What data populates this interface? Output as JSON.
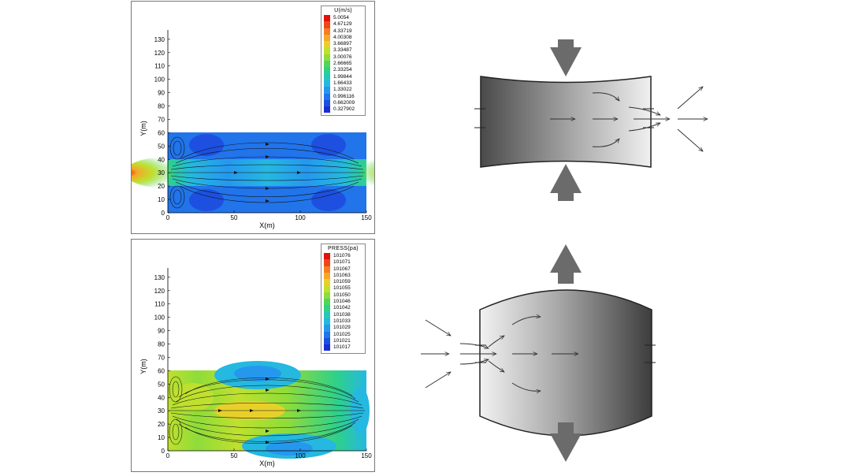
{
  "top_plot": {
    "legend_title": "U(m/s)",
    "legend_values": [
      "5.0054",
      "4.67129",
      "4.33719",
      "4.00308",
      "3.66897",
      "3.33487",
      "3.00076",
      "2.66665",
      "2.33254",
      "1.99844",
      "1.66433",
      "1.33022",
      "0.996116",
      "0.662009",
      "0.327902"
    ],
    "x_label": "X(m)",
    "y_label": "Y(m)",
    "x_ticks": [
      "0",
      "50",
      "100",
      "150"
    ],
    "y_ticks": [
      "0",
      "10",
      "20",
      "30",
      "40",
      "50",
      "60",
      "70",
      "80",
      "90",
      "100",
      "110",
      "120",
      "130"
    ]
  },
  "bottom_plot": {
    "legend_title": "PRESS(pa)",
    "legend_values": [
      "101076",
      "101071",
      "101067",
      "101063",
      "101059",
      "101055",
      "101050",
      "101046",
      "101042",
      "101038",
      "101033",
      "101029",
      "101025",
      "101021",
      "101017"
    ],
    "x_label": "X(m)",
    "y_label": "Y(m)",
    "x_ticks": [
      "0",
      "50",
      "100",
      "150"
    ],
    "y_ticks": [
      "0",
      "10",
      "20",
      "30",
      "40",
      "50",
      "60",
      "70",
      "80",
      "90",
      "100",
      "110",
      "120",
      "130"
    ]
  },
  "legend_colors": [
    "#e3120b",
    "#f0451a",
    "#f77d22",
    "#f5a828",
    "#e8d02c",
    "#bfe02e",
    "#8fdc3a",
    "#4ed65a",
    "#2fd08a",
    "#25c8b8",
    "#25b8e0",
    "#2598ee",
    "#2174ea",
    "#1d50e0",
    "#1a2ed2"
  ],
  "diagram": {
    "top_shape": "converging-channel",
    "bottom_shape": "diverging-channel",
    "arrow_color": "#6b6b6b"
  }
}
